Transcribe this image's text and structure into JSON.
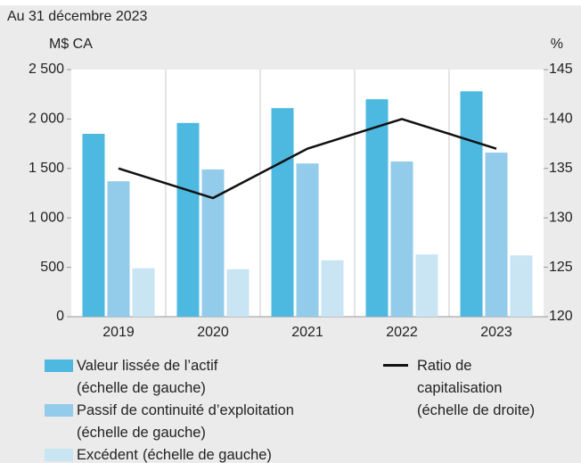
{
  "chart_data": {
    "type": "bar",
    "subtitle": "Au 31 décembre 2023",
    "y_label": "M$ CA",
    "y2_label": "%",
    "categories": [
      "2019",
      "2020",
      "2021",
      "2022",
      "2023"
    ],
    "series": [
      {
        "name": "Valeur lissée de l’actif",
        "note": "(échelle de gauche)",
        "color": "#4db8e0",
        "values": [
          1850,
          1960,
          2110,
          2200,
          2280
        ]
      },
      {
        "name": "Passif de continuité d’exploitation",
        "note": "(échelle de gauche)",
        "color": "#93cbea",
        "values": [
          1370,
          1490,
          1550,
          1570,
          1660
        ]
      },
      {
        "name": "Excédent",
        "note": "(échelle de gauche)",
        "color": "#c9e4f3",
        "values": [
          490,
          480,
          570,
          630,
          620
        ]
      },
      {
        "name": "Ratio de capitalisation",
        "note": "(échelle de droite)",
        "color": "#111111",
        "type": "line",
        "axis": "y2",
        "values": [
          135,
          132,
          137,
          140,
          137
        ]
      }
    ],
    "ylim": [
      0,
      2500
    ],
    "yticks": [
      0,
      {
        "value": 500,
        "label": "500"
      },
      {
        "value": 1000,
        "label": "1 000"
      },
      {
        "value": 1500,
        "label": "1 500"
      },
      {
        "value": 2000,
        "label": "2 000"
      },
      {
        "value": 2500,
        "label": "2 500"
      }
    ],
    "y2lim": [
      120,
      145
    ],
    "y2ticks": [
      120,
      125,
      130,
      135,
      140,
      145
    ]
  }
}
